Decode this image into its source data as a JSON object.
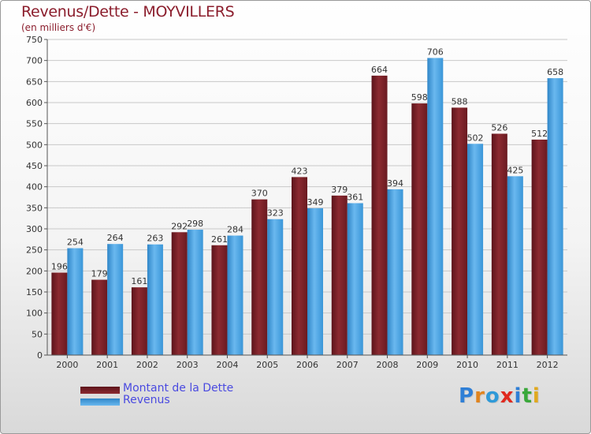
{
  "chart_data": {
    "type": "bar",
    "title": "Revenus/Dette - MOYVILLERS",
    "subtitle": "(en milliers d'€)",
    "xlabel": "",
    "ylabel": "",
    "ylim": [
      0,
      750
    ],
    "yticks": [
      0,
      50,
      100,
      150,
      200,
      250,
      300,
      350,
      400,
      450,
      500,
      550,
      600,
      650,
      700,
      750
    ],
    "grid": true,
    "legend_position": "bottom-left",
    "categories": [
      "2000",
      "2001",
      "2002",
      "2003",
      "2004",
      "2005",
      "2006",
      "2007",
      "2008",
      "2009",
      "2010",
      "2011",
      "2012"
    ],
    "series": [
      {
        "name": "Montant de la Dette",
        "color": "#7a1e26",
        "values": [
          196,
          179,
          161,
          292,
          261,
          370,
          423,
          379,
          664,
          598,
          588,
          526,
          512
        ]
      },
      {
        "name": "Revenus",
        "color": "#3d9de0",
        "values": [
          254,
          264,
          263,
          298,
          284,
          323,
          349,
          361,
          394,
          706,
          502,
          425,
          658
        ]
      }
    ]
  },
  "brand": {
    "letters": [
      "P",
      "r",
      "o",
      "x",
      "i",
      "t",
      "i"
    ],
    "colors": [
      "#2f7fd6",
      "#e0841f",
      "#2f9ad8",
      "#e02a1f",
      "#2f7fd6",
      "#3aa83a",
      "#e0a91f"
    ]
  }
}
